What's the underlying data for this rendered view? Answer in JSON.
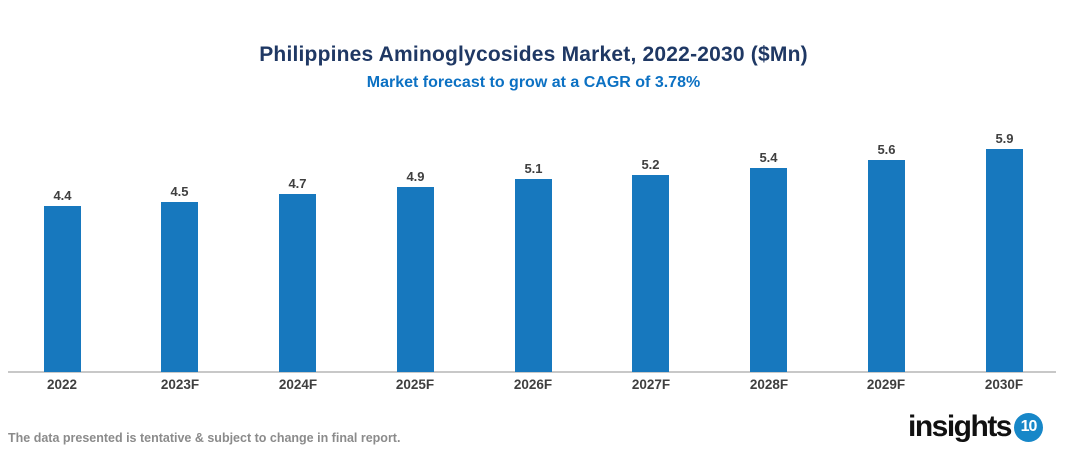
{
  "header": {
    "title": "Philippines Aminoglycosides Market, 2022-2030 ($Mn)",
    "subtitle": "Market forecast to grow at a CAGR of 3.78%"
  },
  "chart_data": {
    "type": "bar",
    "categories": [
      "2022",
      "2023F",
      "2024F",
      "2025F",
      "2026F",
      "2027F",
      "2028F",
      "2029F",
      "2030F"
    ],
    "values": [
      4.4,
      4.5,
      4.7,
      4.9,
      5.1,
      5.2,
      5.4,
      5.6,
      5.9
    ],
    "title": "Philippines Aminoglycosides Market, 2022-2030 ($Mn)",
    "subtitle": "Market forecast to grow at a CAGR of 3.78%",
    "unit": "$Mn",
    "cagr_percent": 3.78,
    "xlabel": "",
    "ylabel": "",
    "ylim": [
      0,
      6.5
    ],
    "grid": false,
    "legend": false,
    "data_labels": true,
    "bar_color": "#1778BE"
  },
  "footer": {
    "disclaimer": "The data presented is tentative & subject to change in final report.",
    "logo_text": "insights",
    "logo_number": "10"
  },
  "colors": {
    "title": "#1F3864",
    "subtitle": "#0C71C3",
    "bar": "#1778BE",
    "axis_line": "#C8C8C8",
    "data_label": "#3F3F3F",
    "footer_text": "#8B8B8B",
    "logo_circle": "#1787C8"
  }
}
